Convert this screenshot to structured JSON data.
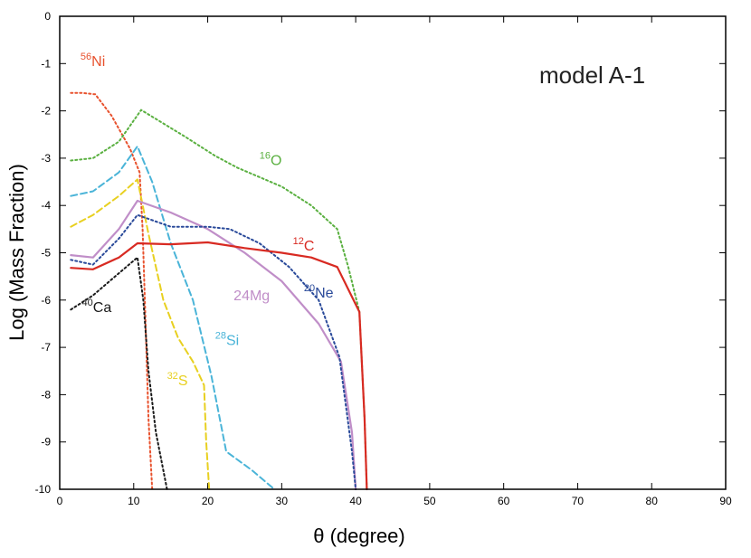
{
  "chart_data": {
    "type": "line",
    "title": "",
    "annotation": "model A-1",
    "xlabel": "θ (degree)",
    "ylabel": "Log (Mass Fraction)",
    "xlim": [
      0,
      90
    ],
    "ylim": [
      -10,
      0
    ],
    "x_ticks": [
      "0",
      "10",
      "20",
      "30",
      "40",
      "50",
      "60",
      "70",
      "80",
      "90"
    ],
    "y_ticks": [
      "0",
      "-1",
      "-2",
      "-3",
      "-4",
      "-5",
      "-6",
      "-7",
      "-8",
      "-9",
      "-10"
    ],
    "grid": false,
    "series": [
      {
        "id": "ni56",
        "mass": "56",
        "element": "Ni",
        "color": "#e8522e",
        "dash": "2,3",
        "label_at": [
          2.8,
          -1.05
        ],
        "points": [
          [
            1.5,
            -1.62
          ],
          [
            3,
            -1.62
          ],
          [
            4.8,
            -1.65
          ],
          [
            7,
            -2.1
          ],
          [
            9.5,
            -2.8
          ],
          [
            10.8,
            -3.3
          ],
          [
            11.2,
            -4.5
          ],
          [
            11.6,
            -6.5
          ],
          [
            12,
            -8.5
          ],
          [
            12.5,
            -10
          ]
        ]
      },
      {
        "id": "o16",
        "mass": "16",
        "element": "O",
        "color": "#5ab040",
        "dash": "2,3",
        "label_at": [
          27,
          -3.15
        ],
        "points": [
          [
            1.5,
            -3.05
          ],
          [
            4.5,
            -3.0
          ],
          [
            8,
            -2.65
          ],
          [
            11,
            -1.98
          ],
          [
            17,
            -2.55
          ],
          [
            21,
            -2.95
          ],
          [
            24,
            -3.2
          ],
          [
            30,
            -3.6
          ],
          [
            34,
            -4.0
          ],
          [
            37.5,
            -4.5
          ],
          [
            39,
            -5.3
          ],
          [
            40.5,
            -6.25
          ],
          [
            41.2,
            -8.5
          ],
          [
            41.5,
            -10
          ]
        ]
      },
      {
        "id": "si28",
        "mass": "28",
        "element": "Si",
        "color": "#4ab4d8",
        "dash": "7,4",
        "label_at": [
          21,
          -6.95
        ],
        "points": [
          [
            1.5,
            -3.8
          ],
          [
            4.5,
            -3.7
          ],
          [
            8,
            -3.3
          ],
          [
            10.5,
            -2.75
          ],
          [
            12.5,
            -3.5
          ],
          [
            15,
            -4.8
          ],
          [
            18,
            -6.0
          ],
          [
            20.5,
            -7.6
          ],
          [
            22.5,
            -9.2
          ],
          [
            26,
            -9.6
          ],
          [
            29,
            -10
          ]
        ]
      },
      {
        "id": "s32",
        "mass": "32",
        "element": "S",
        "color": "#e8d020",
        "dash": "7,4",
        "label_at": [
          14.5,
          -7.8
        ],
        "points": [
          [
            1.5,
            -4.45
          ],
          [
            4.5,
            -4.2
          ],
          [
            8,
            -3.8
          ],
          [
            10.5,
            -3.45
          ],
          [
            12,
            -4.6
          ],
          [
            14,
            -6.0
          ],
          [
            16,
            -6.8
          ],
          [
            18,
            -7.3
          ],
          [
            19.5,
            -7.8
          ],
          [
            19.8,
            -9.0
          ],
          [
            20.2,
            -10
          ]
        ]
      },
      {
        "id": "mg24",
        "mass": "",
        "element": "24Mg",
        "color": "#c08ec8",
        "dash": "",
        "label_at": [
          23.5,
          -6.0
        ],
        "points": [
          [
            1.5,
            -5.05
          ],
          [
            4.5,
            -5.1
          ],
          [
            8,
            -4.5
          ],
          [
            10.5,
            -3.9
          ],
          [
            15,
            -4.15
          ],
          [
            20,
            -4.5
          ],
          [
            25,
            -5.0
          ],
          [
            30,
            -5.6
          ],
          [
            35,
            -6.5
          ],
          [
            38,
            -7.3
          ],
          [
            39.5,
            -8.8
          ],
          [
            40,
            -10
          ]
        ]
      },
      {
        "id": "ne20",
        "mass": "20",
        "element": "Ne",
        "color": "#2a4a9a",
        "dash": "2,3",
        "label_at": [
          33,
          -5.95
        ],
        "points": [
          [
            1.5,
            -5.15
          ],
          [
            4.5,
            -5.25
          ],
          [
            8,
            -4.7
          ],
          [
            10.5,
            -4.2
          ],
          [
            15,
            -4.45
          ],
          [
            20,
            -4.45
          ],
          [
            23,
            -4.5
          ],
          [
            27,
            -4.8
          ],
          [
            31,
            -5.3
          ],
          [
            35,
            -6.0
          ],
          [
            37.8,
            -7.2
          ],
          [
            39.5,
            -9.2
          ],
          [
            40,
            -10
          ]
        ]
      },
      {
        "id": "c12",
        "mass": "12",
        "element": "C",
        "color": "#d82a22",
        "dash": "",
        "label_at": [
          31.5,
          -4.95
        ],
        "points": [
          [
            1.5,
            -5.32
          ],
          [
            4.5,
            -5.35
          ],
          [
            8,
            -5.1
          ],
          [
            10.5,
            -4.8
          ],
          [
            15,
            -4.82
          ],
          [
            20,
            -4.78
          ],
          [
            25,
            -4.9
          ],
          [
            30,
            -5.0
          ],
          [
            34,
            -5.1
          ],
          [
            37.5,
            -5.3
          ],
          [
            40.5,
            -6.25
          ],
          [
            41.2,
            -8.5
          ],
          [
            41.5,
            -10
          ]
        ]
      },
      {
        "id": "ca40",
        "mass": "40",
        "element": "Ca",
        "color": "#1a1a1a",
        "dash": "2,3",
        "label_at": [
          3,
          -6.25
        ],
        "points": [
          [
            1.5,
            -6.2
          ],
          [
            4.5,
            -5.9
          ],
          [
            7.5,
            -5.5
          ],
          [
            10.5,
            -5.1
          ],
          [
            11.3,
            -6.0
          ],
          [
            12,
            -7.5
          ],
          [
            13,
            -8.8
          ],
          [
            14.5,
            -10
          ]
        ]
      }
    ]
  }
}
